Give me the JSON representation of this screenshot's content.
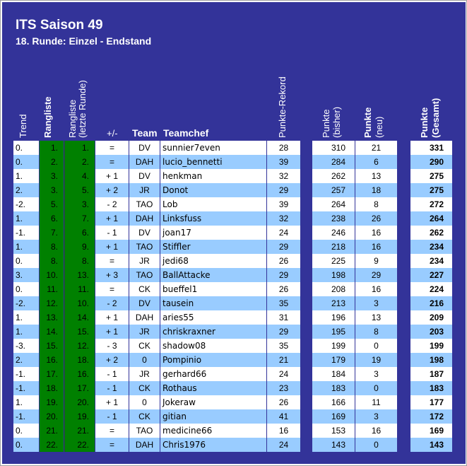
{
  "title": "ITS Saison 49",
  "subtitle": "18. Runde: Einzel - Endstand",
  "headers": {
    "trend": "Trend",
    "rangliste": "Rangliste",
    "rangliste_last_1": "Rangliste",
    "rangliste_last_2": "(letzte Runde)",
    "plusminus": "+/-",
    "team": "Team",
    "teamchef": "Teamchef",
    "rekord": "Punkte-Rekord",
    "bisher_1": "Punkte",
    "bisher_2": "(bisher)",
    "neu_1": "Punkte",
    "neu_2": "(neu)",
    "gesamt_1": "Punkte",
    "gesamt_2": "(Gesamt)"
  },
  "colors": {
    "background": "#333399",
    "row_white": "#ffffff",
    "row_light": "#99ccff",
    "rank_green": "#008000"
  },
  "rows": [
    {
      "trend": "0.",
      "rank": "1.",
      "last": "1.",
      "pm": "=",
      "team": "DV",
      "chef": "sunnier7even",
      "rekord": "28",
      "bisher": "310",
      "neu": "21",
      "gesamt": "331"
    },
    {
      "trend": "0.",
      "rank": "2.",
      "last": "2.",
      "pm": "=",
      "team": "DAH",
      "chef": "lucio_bennetti",
      "rekord": "39",
      "bisher": "284",
      "neu": "6",
      "gesamt": "290"
    },
    {
      "trend": "1.",
      "rank": "3.",
      "last": "4.",
      "pm": "+ 1",
      "team": "DV",
      "chef": "henkman",
      "rekord": "32",
      "bisher": "262",
      "neu": "13",
      "gesamt": "275"
    },
    {
      "trend": "2.",
      "rank": "3.",
      "last": "5.",
      "pm": "+ 2",
      "team": "JR",
      "chef": "Donot",
      "rekord": "29",
      "bisher": "257",
      "neu": "18",
      "gesamt": "275"
    },
    {
      "trend": "-2.",
      "rank": "5.",
      "last": "3.",
      "pm": "- 2",
      "team": "TAO",
      "chef": "Lob",
      "rekord": "39",
      "bisher": "264",
      "neu": "8",
      "gesamt": "272"
    },
    {
      "trend": "1.",
      "rank": "6.",
      "last": "7.",
      "pm": "+ 1",
      "team": "DAH",
      "chef": "Linksfuss",
      "rekord": "32",
      "bisher": "238",
      "neu": "26",
      "gesamt": "264"
    },
    {
      "trend": "-1.",
      "rank": "7.",
      "last": "6.",
      "pm": "- 1",
      "team": "DV",
      "chef": "joan17",
      "rekord": "24",
      "bisher": "246",
      "neu": "16",
      "gesamt": "262"
    },
    {
      "trend": "1.",
      "rank": "8.",
      "last": "9.",
      "pm": "+ 1",
      "team": "TAO",
      "chef": "Stiffler",
      "rekord": "29",
      "bisher": "218",
      "neu": "16",
      "gesamt": "234"
    },
    {
      "trend": "0.",
      "rank": "8.",
      "last": "8.",
      "pm": "=",
      "team": "JR",
      "chef": "jedi68",
      "rekord": "26",
      "bisher": "225",
      "neu": "9",
      "gesamt": "234"
    },
    {
      "trend": "3.",
      "rank": "10.",
      "last": "13.",
      "pm": "+ 3",
      "team": "TAO",
      "chef": "BallAttacke",
      "rekord": "29",
      "bisher": "198",
      "neu": "29",
      "gesamt": "227"
    },
    {
      "trend": "0.",
      "rank": "11.",
      "last": "11.",
      "pm": "=",
      "team": "CK",
      "chef": "bueffel1",
      "rekord": "26",
      "bisher": "208",
      "neu": "16",
      "gesamt": "224"
    },
    {
      "trend": "-2.",
      "rank": "12.",
      "last": "10.",
      "pm": "- 2",
      "team": "DV",
      "chef": "tausein",
      "rekord": "35",
      "bisher": "213",
      "neu": "3",
      "gesamt": "216"
    },
    {
      "trend": "1.",
      "rank": "13.",
      "last": "14.",
      "pm": "+ 1",
      "team": "DAH",
      "chef": "aries55",
      "rekord": "31",
      "bisher": "196",
      "neu": "13",
      "gesamt": "209"
    },
    {
      "trend": "1.",
      "rank": "14.",
      "last": "15.",
      "pm": "+ 1",
      "team": "JR",
      "chef": "chriskraxner",
      "rekord": "29",
      "bisher": "195",
      "neu": "8",
      "gesamt": "203"
    },
    {
      "trend": "-3.",
      "rank": "15.",
      "last": "12.",
      "pm": "- 3",
      "team": "CK",
      "chef": "shadow08",
      "rekord": "35",
      "bisher": "199",
      "neu": "0",
      "gesamt": "199"
    },
    {
      "trend": "2.",
      "rank": "16.",
      "last": "18.",
      "pm": "+ 2",
      "team": "0",
      "chef": "Pompinio",
      "rekord": "21",
      "bisher": "179",
      "neu": "19",
      "gesamt": "198"
    },
    {
      "trend": "-1.",
      "rank": "17.",
      "last": "16.",
      "pm": "- 1",
      "team": "JR",
      "chef": "gerhard66",
      "rekord": "24",
      "bisher": "184",
      "neu": "3",
      "gesamt": "187"
    },
    {
      "trend": "-1.",
      "rank": "18.",
      "last": "17.",
      "pm": "- 1",
      "team": "CK",
      "chef": "Rothaus",
      "rekord": "23",
      "bisher": "183",
      "neu": "0",
      "gesamt": "183"
    },
    {
      "trend": "1.",
      "rank": "19.",
      "last": "20.",
      "pm": "+ 1",
      "team": "0",
      "chef": "Jokeraw",
      "rekord": "26",
      "bisher": "166",
      "neu": "11",
      "gesamt": "177"
    },
    {
      "trend": "-1.",
      "rank": "20.",
      "last": "19.",
      "pm": "- 1",
      "team": "CK",
      "chef": "gitian",
      "rekord": "41",
      "bisher": "169",
      "neu": "3",
      "gesamt": "172"
    },
    {
      "trend": "0.",
      "rank": "21.",
      "last": "21.",
      "pm": "=",
      "team": "TAO",
      "chef": "medicine66",
      "rekord": "16",
      "bisher": "153",
      "neu": "16",
      "gesamt": "169"
    },
    {
      "trend": "0.",
      "rank": "22.",
      "last": "22.",
      "pm": "=",
      "team": "DAH",
      "chef": "Chris1976",
      "rekord": "24",
      "bisher": "143",
      "neu": "0",
      "gesamt": "143"
    }
  ]
}
